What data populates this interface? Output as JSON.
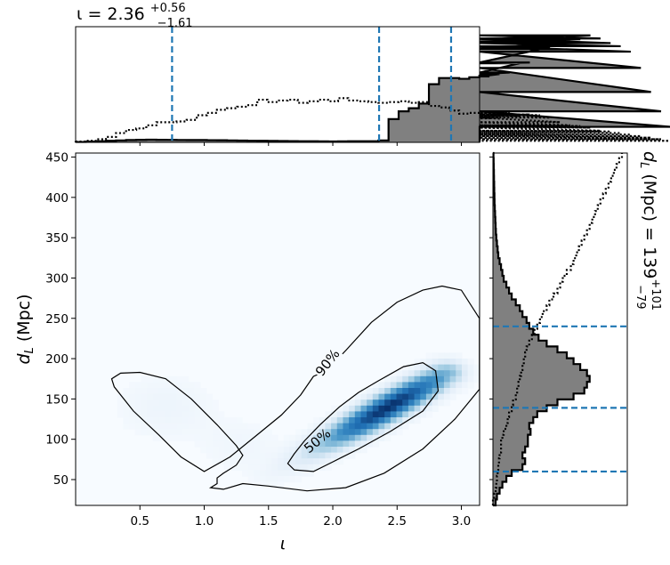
{
  "chart_data": [
    {
      "panel": "marginal-top",
      "type": "histogram",
      "title_main": "ι = 2.36",
      "title_sup": "+0.56",
      "title_sub": "−1.61",
      "xlim": [
        0.0,
        3.14159
      ],
      "bins_x0": 0.0,
      "bin_width": 0.0785,
      "filled_counts": [
        0.5,
        1,
        1.5,
        2,
        2.5,
        3,
        3.3,
        3.5,
        3.3,
        3.2,
        3.1,
        3.0,
        3.0,
        2.8,
        2.7,
        2.5,
        2.3,
        2.1,
        2.0,
        1.9,
        1.8,
        1.6,
        1.5,
        1.4,
        1.3,
        1.2,
        1.3,
        1.5,
        1.4,
        1.5,
        2.5,
        30,
        40,
        44,
        50,
        75,
        83,
        83,
        82,
        84,
        86,
        85,
        88,
        90,
        102,
        103,
        120,
        122,
        120,
        130,
        133,
        138,
        134,
        128,
        124,
        117,
        96,
        65,
        40,
        20
      ],
      "filled_counts_scale_note": "",
      "dotted_counts": [
        1,
        2,
        4,
        7,
        12,
        16,
        18,
        22,
        26,
        26,
        27,
        29,
        35,
        38,
        42,
        44,
        46,
        48,
        55,
        52,
        54,
        55,
        51,
        53,
        55,
        53,
        57,
        54,
        53,
        52,
        51,
        52,
        53,
        51,
        52,
        47,
        45,
        41,
        37,
        38,
        38,
        31,
        32,
        38,
        34,
        36,
        35,
        32,
        26,
        22,
        21,
        19,
        15,
        14,
        12,
        10,
        8,
        6,
        4,
        2
      ],
      "ylim": [
        0,
        140
      ],
      "quantile_lines": [
        0.75,
        2.36,
        2.92
      ],
      "line_color": "#1f77b4",
      "fill_color": "#808080"
    },
    {
      "panel": "joint",
      "type": "heatmap",
      "xlabel": "ι",
      "ylabel_main": "d",
      "ylabel_sub": "L",
      "ylabel_unit": " (Mpc)",
      "xlim": [
        0.0,
        3.14159
      ],
      "ylim": [
        18,
        455
      ],
      "xticks": [
        "0.5",
        "1.0",
        "1.5",
        "2.0",
        "2.5",
        "3.0"
      ],
      "xtick_values": [
        0.5,
        1.0,
        1.5,
        2.0,
        2.5,
        3.0
      ],
      "yticks": [
        "50",
        "100",
        "150",
        "200",
        "250",
        "300",
        "350",
        "400",
        "450"
      ],
      "ytick_values": [
        50,
        100,
        150,
        200,
        250,
        300,
        350,
        400,
        450
      ],
      "colormap": "Blues",
      "density_peak": {
        "iota": 2.5,
        "dL": 145
      },
      "contours": [
        {
          "label": "90%",
          "points": [
            [
              1.05,
              40
            ],
            [
              1.15,
              38
            ],
            [
              1.3,
              45
            ],
            [
              1.5,
              42
            ],
            [
              1.8,
              36
            ],
            [
              2.1,
              40
            ],
            [
              2.4,
              58
            ],
            [
              2.7,
              88
            ],
            [
              2.95,
              125
            ],
            [
              3.14,
              162
            ],
            [
              3.14,
              250
            ],
            [
              3.0,
              285
            ],
            [
              2.85,
              290
            ],
            [
              2.7,
              285
            ],
            [
              2.5,
              270
            ],
            [
              2.3,
              245
            ],
            [
              2.1,
              210
            ],
            [
              1.95,
              185
            ],
            [
              1.85,
              178
            ],
            [
              1.75,
              155
            ],
            [
              1.6,
              130
            ],
            [
              1.4,
              104
            ],
            [
              1.2,
              78
            ],
            [
              1.0,
              60
            ],
            [
              0.82,
              78
            ],
            [
              0.65,
              105
            ],
            [
              0.45,
              135
            ],
            [
              0.3,
              165
            ],
            [
              0.28,
              175
            ],
            [
              0.35,
              182
            ],
            [
              0.5,
              183
            ],
            [
              0.7,
              175
            ],
            [
              0.9,
              150
            ],
            [
              1.1,
              118
            ],
            [
              1.25,
              92
            ],
            [
              1.3,
              80
            ],
            [
              1.25,
              68
            ],
            [
              1.15,
              58
            ],
            [
              1.1,
              52
            ],
            [
              1.1,
              45
            ],
            [
              1.05,
              40
            ]
          ],
          "label_pos": [
            1.96,
            195
          ],
          "label_angle": -52
        },
        {
          "label": "50%",
          "points": [
            [
              1.7,
              62
            ],
            [
              1.85,
              60
            ],
            [
              2.0,
              72
            ],
            [
              2.2,
              88
            ],
            [
              2.45,
              110
            ],
            [
              2.7,
              135
            ],
            [
              2.82,
              160
            ],
            [
              2.8,
              185
            ],
            [
              2.7,
              195
            ],
            [
              2.55,
              190
            ],
            [
              2.35,
              172
            ],
            [
              2.2,
              158
            ],
            [
              2.05,
              140
            ],
            [
              1.9,
              118
            ],
            [
              1.78,
              98
            ],
            [
              1.7,
              82
            ],
            [
              1.65,
              70
            ],
            [
              1.7,
              62
            ]
          ],
          "label_pos": [
            1.88,
            98
          ],
          "label_angle": -40
        }
      ]
    },
    {
      "panel": "marginal-right",
      "type": "histogram",
      "orientation": "horizontal",
      "title_main": "d",
      "title_sub_L": "L",
      "title_unit": " (Mpc) = 139",
      "title_sup": "+101",
      "title_sub": "−79",
      "ylim": [
        18,
        455
      ],
      "bins_y0": 18,
      "bin_height": 7.3,
      "filled_counts": [
        2,
        3,
        5,
        7,
        10,
        14,
        22,
        24,
        22,
        24,
        26,
        26,
        28,
        27,
        30,
        33,
        40,
        48,
        60,
        68,
        70,
        72,
        70,
        65,
        60,
        55,
        48,
        40,
        34,
        30,
        27,
        25,
        22,
        20,
        17,
        14,
        12,
        10,
        8,
        7,
        6,
        5,
        4,
        3.5,
        3,
        2.5,
        2.2,
        2,
        1.8,
        1.6,
        1.4,
        1.2,
        1.1,
        1,
        0.9,
        0.8,
        0.7,
        0.6,
        0.5,
        0.4
      ],
      "dotted_counts": [
        0,
        1,
        2,
        2.5,
        3,
        3.5,
        4,
        4.5,
        5,
        6,
        6,
        7,
        8,
        10,
        11,
        12,
        14,
        15,
        17,
        18,
        19,
        20,
        21,
        22,
        23,
        24,
        25,
        27,
        29,
        31,
        33,
        35,
        37,
        40,
        42,
        45,
        48,
        50,
        52,
        55,
        58,
        60,
        62,
        64,
        66,
        68,
        70,
        72,
        74,
        76,
        78,
        80,
        82,
        84,
        86,
        88,
        90,
        92,
        94,
        96
      ],
      "xlim": [
        0,
        100
      ],
      "quantile_lines": [
        60,
        139,
        240
      ],
      "line_color": "#1f77b4",
      "fill_color": "#808080"
    }
  ]
}
